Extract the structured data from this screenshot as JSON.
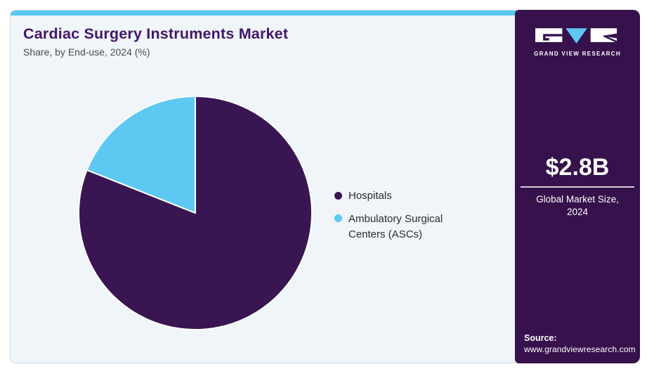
{
  "header": {
    "title": "Cardiac Surgery Instruments Market",
    "subtitle": "Share, by End-use, 2024 (%)"
  },
  "chart_data": {
    "type": "pie",
    "title": "Cardiac Surgery Instruments Market Share, by End-use, 2024 (%)",
    "labels": [
      "Hospitals",
      "Ambulatory Surgical Centers (ASCs)"
    ],
    "values": [
      81,
      19
    ],
    "unit": "% share",
    "colors": [
      "#391551",
      "#5dc9f3"
    ],
    "start_angle": "12 o'clock",
    "direction": "clockwise",
    "legend_position": "right",
    "data_labels_shown": false
  },
  "legend": {
    "items": [
      {
        "label": "Hospitals",
        "color": "#391551"
      },
      {
        "label": "Ambulatory Surgical Centers (ASCs)",
        "color": "#5dc9f3"
      }
    ]
  },
  "sidebar": {
    "logo": {
      "brand_name": "GRAND VIEW RESEARCH",
      "icon": "gvr-logo"
    },
    "market_size": {
      "value": "$2.8B",
      "label": "Global Market Size, 2024"
    },
    "source": {
      "label": "Source:",
      "url": "www.grandviewresearch.com"
    }
  },
  "colors": {
    "accent_cyan": "#57c7f1",
    "panel_purple": "#36114b",
    "pie_dark_purple": "#391551",
    "pie_light_blue": "#5dc9f3",
    "title_purple": "#421769",
    "card_background": "#eff5f9"
  }
}
